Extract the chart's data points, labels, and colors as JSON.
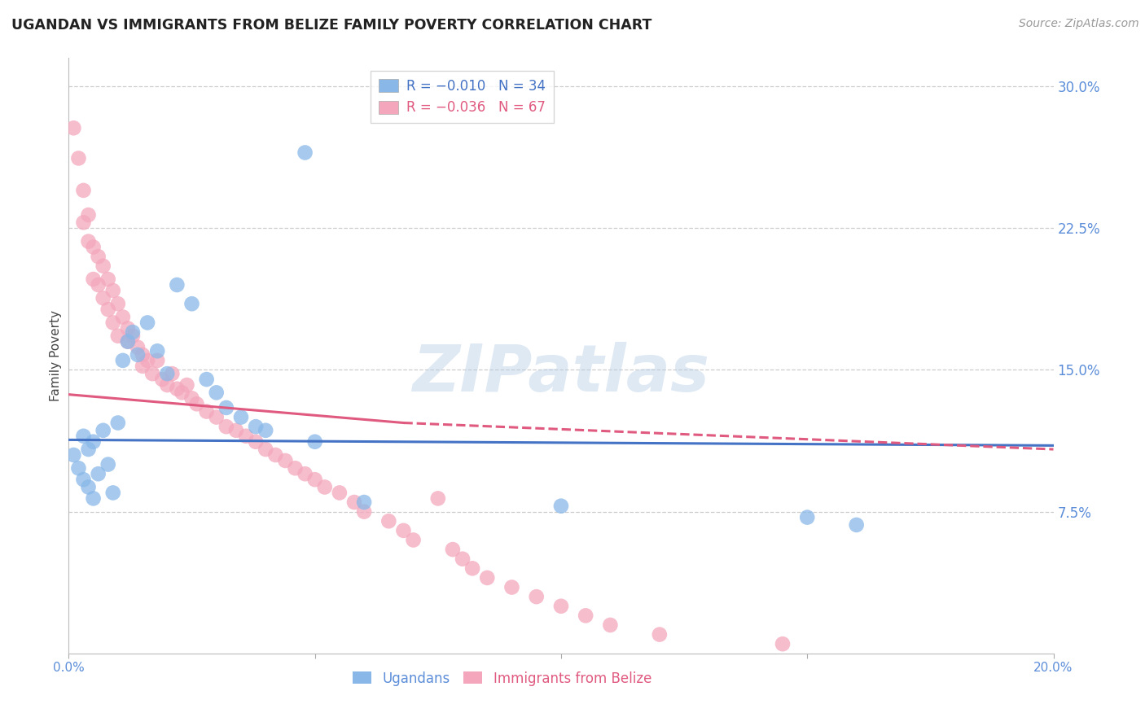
{
  "title": "UGANDAN VS IMMIGRANTS FROM BELIZE FAMILY POVERTY CORRELATION CHART",
  "source": "Source: ZipAtlas.com",
  "ylabel": "Family Poverty",
  "right_yticks": [
    "30.0%",
    "22.5%",
    "15.0%",
    "7.5%"
  ],
  "right_ytick_vals": [
    0.3,
    0.225,
    0.15,
    0.075
  ],
  "xlim": [
    0.0,
    0.2
  ],
  "ylim": [
    0.0,
    0.315
  ],
  "watermark": "ZIPatlas",
  "ugandans_color": "#89b8e8",
  "ugandans_line_color": "#4472c4",
  "belize_color": "#f4a7bc",
  "belize_line_color": "#e05a80",
  "legend_blue_R": "R = −0.010",
  "legend_blue_N": "N = 34",
  "legend_pink_R": "R = −0.036",
  "legend_pink_N": "N = 67",
  "ug_x": [
    0.001,
    0.002,
    0.003,
    0.003,
    0.004,
    0.004,
    0.005,
    0.005,
    0.006,
    0.007,
    0.008,
    0.009,
    0.01,
    0.011,
    0.012,
    0.013,
    0.014,
    0.016,
    0.018,
    0.02,
    0.022,
    0.025,
    0.028,
    0.03,
    0.032,
    0.035,
    0.038,
    0.04,
    0.048,
    0.05,
    0.06,
    0.1,
    0.15,
    0.16
  ],
  "ug_y": [
    0.105,
    0.098,
    0.092,
    0.115,
    0.088,
    0.108,
    0.082,
    0.112,
    0.095,
    0.118,
    0.1,
    0.085,
    0.122,
    0.155,
    0.165,
    0.17,
    0.158,
    0.175,
    0.16,
    0.148,
    0.195,
    0.185,
    0.145,
    0.138,
    0.13,
    0.125,
    0.12,
    0.118,
    0.265,
    0.112,
    0.08,
    0.078,
    0.072,
    0.068
  ],
  "bz_x": [
    0.001,
    0.002,
    0.003,
    0.003,
    0.004,
    0.004,
    0.005,
    0.005,
    0.006,
    0.006,
    0.007,
    0.007,
    0.008,
    0.008,
    0.009,
    0.009,
    0.01,
    0.01,
    0.011,
    0.012,
    0.012,
    0.013,
    0.014,
    0.015,
    0.015,
    0.016,
    0.017,
    0.018,
    0.019,
    0.02,
    0.021,
    0.022,
    0.023,
    0.024,
    0.025,
    0.026,
    0.028,
    0.03,
    0.032,
    0.034,
    0.036,
    0.038,
    0.04,
    0.042,
    0.044,
    0.046,
    0.048,
    0.05,
    0.052,
    0.055,
    0.058,
    0.06,
    0.065,
    0.068,
    0.07,
    0.075,
    0.078,
    0.08,
    0.082,
    0.085,
    0.09,
    0.095,
    0.1,
    0.105,
    0.11,
    0.12,
    0.145
  ],
  "bz_y": [
    0.278,
    0.262,
    0.245,
    0.228,
    0.232,
    0.218,
    0.215,
    0.198,
    0.21,
    0.195,
    0.205,
    0.188,
    0.198,
    0.182,
    0.192,
    0.175,
    0.185,
    0.168,
    0.178,
    0.172,
    0.165,
    0.168,
    0.162,
    0.158,
    0.152,
    0.155,
    0.148,
    0.155,
    0.145,
    0.142,
    0.148,
    0.14,
    0.138,
    0.142,
    0.135,
    0.132,
    0.128,
    0.125,
    0.12,
    0.118,
    0.115,
    0.112,
    0.108,
    0.105,
    0.102,
    0.098,
    0.095,
    0.092,
    0.088,
    0.085,
    0.08,
    0.075,
    0.07,
    0.065,
    0.06,
    0.082,
    0.055,
    0.05,
    0.045,
    0.04,
    0.035,
    0.03,
    0.025,
    0.02,
    0.015,
    0.01,
    0.005
  ],
  "ug_line_x0": 0.0,
  "ug_line_x1": 0.2,
  "ug_line_y0": 0.113,
  "ug_line_y1": 0.11,
  "bz_line_x0": 0.0,
  "bz_line_xsplit": 0.068,
  "bz_line_x1": 0.2,
  "bz_line_y0": 0.137,
  "bz_line_ysplit": 0.122,
  "bz_line_y1": 0.108
}
